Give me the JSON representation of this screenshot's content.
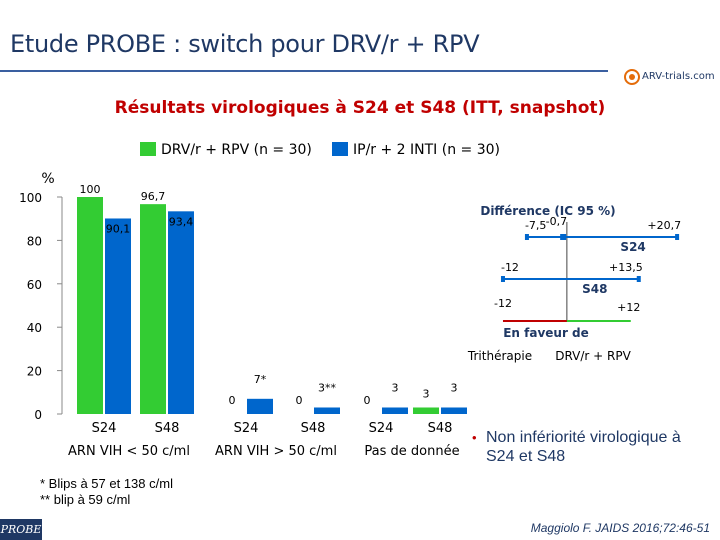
{
  "header": {
    "title": "Etude PROBE : switch pour DRV/r + RPV",
    "logo_text": "ARV-trials.com",
    "subtitle": "Résultats virologiques à S24 et S48 (ITT, snapshot)"
  },
  "colors": {
    "green": "#33cc33",
    "blue": "#0066cc",
    "navy": "#1f3864",
    "red": "#c00000"
  },
  "chart_data": [
    {
      "type": "bar",
      "y_unit_label": "%",
      "ylim": [
        0,
        100
      ],
      "yticks": [
        0,
        20,
        40,
        60,
        80,
        100
      ],
      "legend": [
        "DRV/r + RPV (n = 30)",
        "IP/r + 2 INTI (n = 30)"
      ],
      "groups": [
        {
          "label": "ARN VIH < 50 c/ml",
          "timepoints": [
            {
              "label": "S24",
              "values": [
                100,
                90.1
              ],
              "value_labels": [
                "100",
                "90,1"
              ]
            },
            {
              "label": "S48",
              "values": [
                96.7,
                93.4
              ],
              "value_labels": [
                "96,7",
                "93,4"
              ]
            }
          ]
        },
        {
          "label": "ARN VIH > 50 c/ml",
          "timepoints": [
            {
              "label": "S24",
              "values": [
                0,
                7
              ],
              "value_labels": [
                "0",
                "7*"
              ]
            },
            {
              "label": "S48",
              "values": [
                0,
                3
              ],
              "value_labels": [
                "0",
                "3**"
              ]
            }
          ]
        },
        {
          "label": "Pas de donnée",
          "timepoints": [
            {
              "label": "S24",
              "values": [
                0,
                3
              ],
              "value_labels": [
                "0",
                "3"
              ]
            },
            {
              "label": "S48",
              "values": [
                3,
                3
              ],
              "value_labels": [
                "3",
                "3"
              ]
            }
          ]
        }
      ]
    },
    {
      "type": "forest",
      "title": "Différence (IC 95 %)",
      "xlim": [
        -15,
        25
      ],
      "reference": 0,
      "rows": [
        {
          "label": "S24",
          "estimate": -0.7,
          "lower": -7.5,
          "upper": 20.7,
          "estimate_label": "-0,7",
          "lower_label": "-7,5",
          "upper_label": "+20,7"
        },
        {
          "label": "S48",
          "estimate": 0,
          "lower": -12,
          "upper": 13.5,
          "estimate_label": "",
          "lower_label": "-12",
          "upper_label": "+13,5"
        }
      ],
      "bottom_row": {
        "lower": -12,
        "upper": 12,
        "lower_label": "-12",
        "upper_label": "+12"
      },
      "favor_title": "En faveur de",
      "favor_left": "Trithérapie",
      "favor_right": "DRV/r + RPV"
    }
  ],
  "footnotes": [
    "* Blips à 57 et 138 c/ml",
    "** blip à 59 c/ml"
  ],
  "conclusion": "Non infériorité virologique à S24 et S48",
  "footer": {
    "badge": "PROBE",
    "citation": "Maggiolo F. JAIDS 2016;72:46-51"
  }
}
